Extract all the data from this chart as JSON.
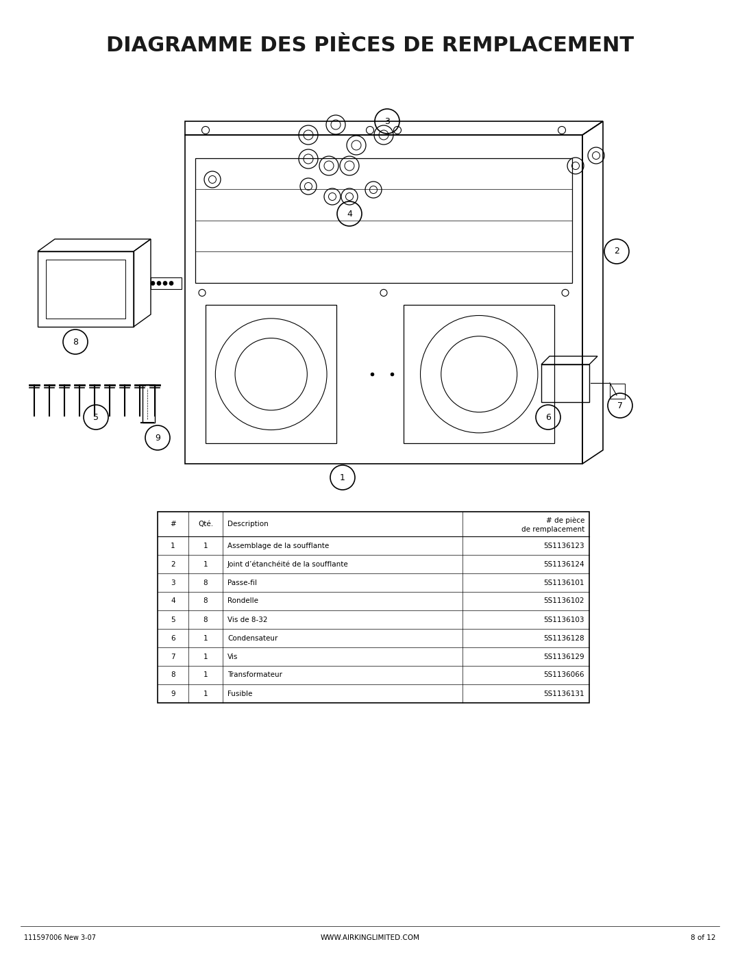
{
  "title": "DIAGRAMME DES PIÈCES DE REMPLACEMENT",
  "bg_color": "#ffffff",
  "title_fontsize": 22,
  "table_headers": [
    "#",
    "Qté.",
    "Description",
    "# de pièce\nde remplacement"
  ],
  "table_rows": [
    [
      "1",
      "1",
      "Assemblage de la soufflante",
      "5S1136123"
    ],
    [
      "2",
      "1",
      "Joint d’étanchéité de la soufflante",
      "5S1136124"
    ],
    [
      "3",
      "8",
      "Passe-fil",
      "5S1136101"
    ],
    [
      "4",
      "8",
      "Rondelle",
      "5S1136102"
    ],
    [
      "5",
      "8",
      "Vis de 8-32",
      "5S1136103"
    ],
    [
      "6",
      "1",
      "Condensateur",
      "5S1136128"
    ],
    [
      "7",
      "1",
      "Vis",
      "5S1136129"
    ],
    [
      "8",
      "1",
      "Transformateur",
      "5S1136066"
    ],
    [
      "9",
      "1",
      "Fusible",
      "5S1136131"
    ]
  ],
  "footer_left": "111597006 New 3-07",
  "footer_center": "WWW.AIRKINGLIMITED.COM",
  "footer_right": "8 of 12"
}
